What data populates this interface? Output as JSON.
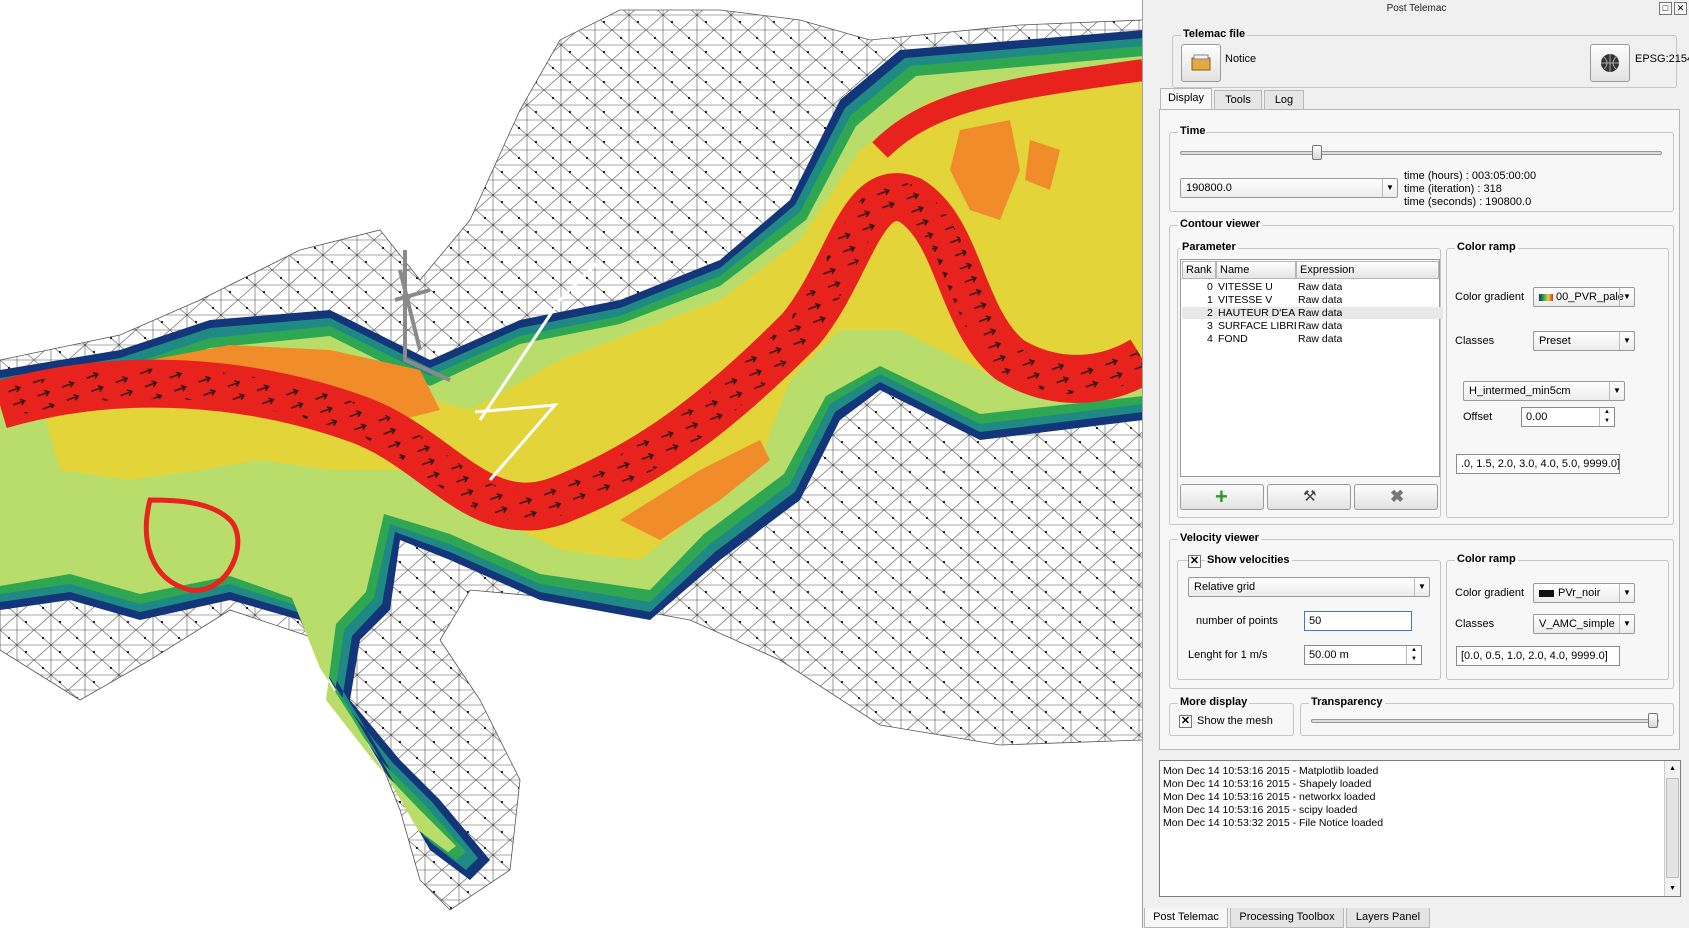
{
  "window": {
    "title": "Post Telemac"
  },
  "telemac_file": {
    "title": "Telemac file",
    "file_label": "Notice",
    "crs_label": "EPSG:2154"
  },
  "tabs": [
    {
      "label": "Display",
      "active": true
    },
    {
      "label": "Tools",
      "active": false
    },
    {
      "label": "Log",
      "active": false
    }
  ],
  "time": {
    "title": "Time",
    "slider_value": 0.3,
    "selected_time": "190800.0",
    "hours": "time (hours) : 003:05:00:00",
    "iteration": "time (iteration) : 318",
    "seconds": "time (seconds) : 190800.0"
  },
  "contour_viewer": {
    "title": "Contour viewer",
    "parameter_title": "Parameter",
    "columns": [
      "Rank",
      "Name",
      "Expression"
    ],
    "rows": [
      {
        "rank": "0",
        "name": "VITESSE U",
        "expression": "Raw data"
      },
      {
        "rank": "1",
        "name": "VITESSE V",
        "expression": "Raw data"
      },
      {
        "rank": "2",
        "name": "HAUTEUR D'EAU",
        "expression": "Raw data"
      },
      {
        "rank": "3",
        "name": "SURFACE LIBRE",
        "expression": "Raw data"
      },
      {
        "rank": "4",
        "name": "FOND",
        "expression": "Raw data"
      }
    ],
    "selected_row": 2,
    "color_ramp": {
      "title": "Color ramp",
      "gradient_label": "Color gradient",
      "gradient_value": "00_PVR_pale",
      "classes_label": "Classes",
      "classes_value": "Preset",
      "preset_value": "H_intermed_min5cm",
      "offset_label": "Offset",
      "offset_value": "0.00",
      "levels": ".0, 1.5, 2.0, 3.0, 4.0, 5.0, 9999.0]"
    }
  },
  "velocity_viewer": {
    "title": "Velocity viewer",
    "show_label": "Show velocities",
    "show_checked": true,
    "grid_mode": "Relative grid",
    "points_label": "number of points",
    "points_value": "50",
    "length_label": "Lenght for 1 m/s",
    "length_value": "50.00 m",
    "color_ramp": {
      "title": "Color ramp",
      "gradient_label": "Color gradient",
      "gradient_value": "PVr_noir",
      "classes_label": "Classes",
      "classes_value": "V_AMC_simple",
      "levels": "[0.0, 0.5, 1.0, 2.0, 4.0, 9999.0]"
    }
  },
  "more_display": {
    "title": "More display",
    "mesh_label": "Show the mesh",
    "mesh_checked": true
  },
  "transparency": {
    "title": "Transparency",
    "value": 1.0
  },
  "log_lines": [
    "Mon Dec 14 10:53:16 2015 - Matplotlib loaded",
    "Mon Dec 14 10:53:16 2015 - Shapely loaded",
    "Mon Dec 14 10:53:16 2015 - networkx loaded",
    "Mon Dec 14 10:53:16 2015 - scipy loaded",
    "Mon Dec 14 10:53:32 2015 - File Notice loaded"
  ],
  "bottom_tabs": [
    {
      "label": "Post Telemac",
      "active": true
    },
    {
      "label": "Processing Toolbox",
      "active": false
    },
    {
      "label": "Layers Panel",
      "active": false
    }
  ],
  "colors": {
    "river": "#e8231e",
    "orange": "#f08c2a",
    "yellow": "#e3d43a",
    "light_green": "#b9dd6a",
    "green": "#2fa652",
    "teal": "#1f8a84",
    "dark_blue": "#13357a",
    "mesh": "#555555"
  }
}
